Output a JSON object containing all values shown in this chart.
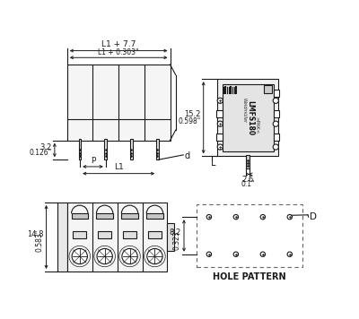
{
  "bg_color": "#ffffff",
  "line_color": "#1a1a1a",
  "top_left": {
    "label_top1": "L1 + 7.7",
    "label_top2": "L1 + 0.303\"",
    "label_left1": "3.2",
    "label_left2": "0.126\"",
    "label_p": "P",
    "label_l1": "L1",
    "label_d": "d",
    "num_poles": 4
  },
  "top_right": {
    "label_height1": "15.2",
    "label_height2": "0.598\"",
    "label_width1": "2.6",
    "label_width2": "0.1\"",
    "label_l": "L"
  },
  "bottom_left": {
    "label_height1": "14.8",
    "label_height2": "0.583\"",
    "num_poles": 4
  },
  "bottom_right": {
    "label_height1": "8.2",
    "label_height2": "0.323\"",
    "label_d": "D",
    "label_text": "HOLE PATTERN",
    "rows": 2,
    "cols": 4
  }
}
